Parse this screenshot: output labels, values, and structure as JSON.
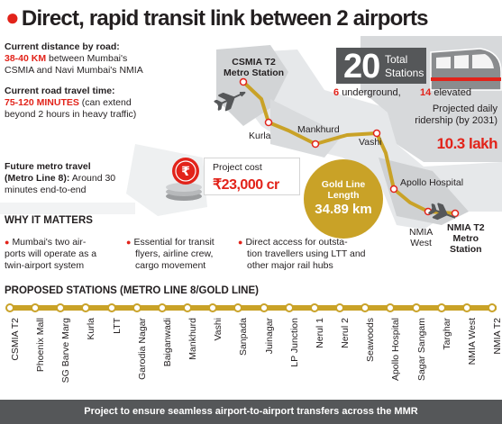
{
  "headline": "Direct, rapid transit link between 2 airports",
  "current_distance": {
    "heading": "Current distance by road:",
    "value": "38-40 KM",
    "text1": "between Mumbai's",
    "text2": "CSMIA and Navi Mumbai's NMIA"
  },
  "current_time": {
    "heading": "Current road travel time:",
    "value": "75-120 MINUTES",
    "text1": "(can extend",
    "text2": "beyond 2 hours in heavy traffic)"
  },
  "future": {
    "heading1": "Future metro travel",
    "heading2": "(Metro Line 8):",
    "text1": "Around 30",
    "text2": "minutes end-to-end"
  },
  "map": {
    "csmia_line1": "CSMIA T2",
    "csmia_line2": "Metro Station",
    "kurla": "Kurla",
    "mankhurd": "Mankhurd",
    "vashi": "Vashi",
    "apollo": "Apollo Hospital",
    "nmia_west_1": "NMIA",
    "nmia_west_2": "West",
    "nmia_t2_1": "NMIA T2",
    "nmia_t2_2": "Metro",
    "nmia_t2_3": "Station"
  },
  "stats": {
    "total": "20",
    "total_label_1": "Total",
    "total_label_2": "Stations",
    "underground_num": "6",
    "underground_text": "underground,",
    "elevated_num": "14",
    "elevated_text": "elevated",
    "ridership_1": "Projected daily",
    "ridership_2": "ridership (by 2031)",
    "ridership_value": "10.3 lakh"
  },
  "cost": {
    "label": "Project cost",
    "value": "₹23,000 cr"
  },
  "gold_line": {
    "label_1": "Gold Line",
    "label_2": "Length",
    "value": "34.89 km"
  },
  "why": {
    "title": "WHY IT MATTERS",
    "items": [
      {
        "l1": "Mumbai's two air-",
        "l2": "ports will operate as a",
        "l3": "twin-airport system"
      },
      {
        "l1": "Essential for transit",
        "l2": "flyers, airline crew,",
        "l3": "cargo movement"
      },
      {
        "l1": "Direct access for outsta-",
        "l2": "tion travellers using LTT and",
        "l3": "other major rail hubs"
      }
    ]
  },
  "stations_title": "PROPOSED STATIONS (METRO LINE 8/GOLD LINE)",
  "stations": [
    "CSMIA T2",
    "Phoenix Mall",
    "SG Barve Marg",
    "Kurla",
    "LTT",
    "Garodia Nagar",
    "Baiganwadi",
    "Mankhurd",
    "Vashi",
    "Sanpada",
    "Juinagar",
    "LP Junction",
    "Nerul 1",
    "Nerul 2",
    "Seawoods",
    "Apollo Hospital",
    "Sagar Sangam",
    "Targhar",
    "NMIA West",
    "NMIA T2"
  ],
  "footer": "Project to ensure seamless airport-to-airport transfers across the MMR",
  "colors": {
    "accent_red": "#e2231a",
    "gold_line": "#c9a227",
    "dark_grey": "#555759"
  }
}
